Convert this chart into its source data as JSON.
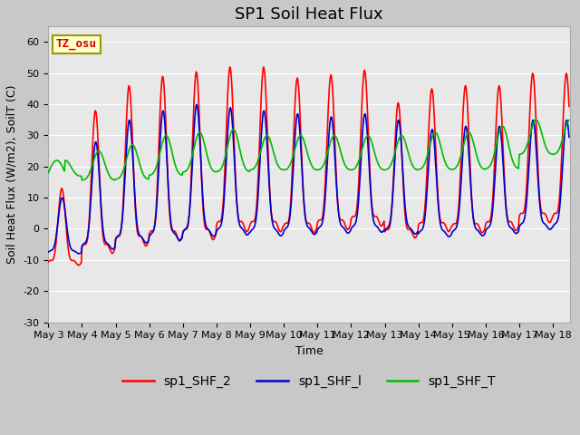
{
  "title": "SP1 Soil Heat Flux",
  "xlabel": "Time",
  "ylabel": "Soil Heat Flux (W/m2), SoilT (C)",
  "ylim": [
    -30,
    65
  ],
  "xlim": [
    0,
    15.5
  ],
  "tz_label": "TZ_osu",
  "legend_labels": [
    "sp1_SHF_2",
    "sp1_SHF_l",
    "sp1_SHF_T"
  ],
  "red_color": "#ff0000",
  "blue_color": "#0000cc",
  "green_color": "#00bb00",
  "fig_bg": "#c8c8c8",
  "ax_bg": "#e8e8e8",
  "grid_color": "#ffffff",
  "yticks": [
    -30,
    -20,
    -10,
    0,
    10,
    20,
    30,
    40,
    50,
    60
  ],
  "xtick_labels": [
    "May 3",
    "May 4",
    "May 5",
    "May 6",
    "May 7",
    "May 8",
    "May 9",
    "May 10",
    "May 11",
    "May 12",
    "May 13",
    "May 14",
    "May 15",
    "May 16",
    "May 17",
    "May 18"
  ],
  "title_fontsize": 13,
  "label_fontsize": 9,
  "tick_fontsize": 8,
  "linewidth": 1.2
}
